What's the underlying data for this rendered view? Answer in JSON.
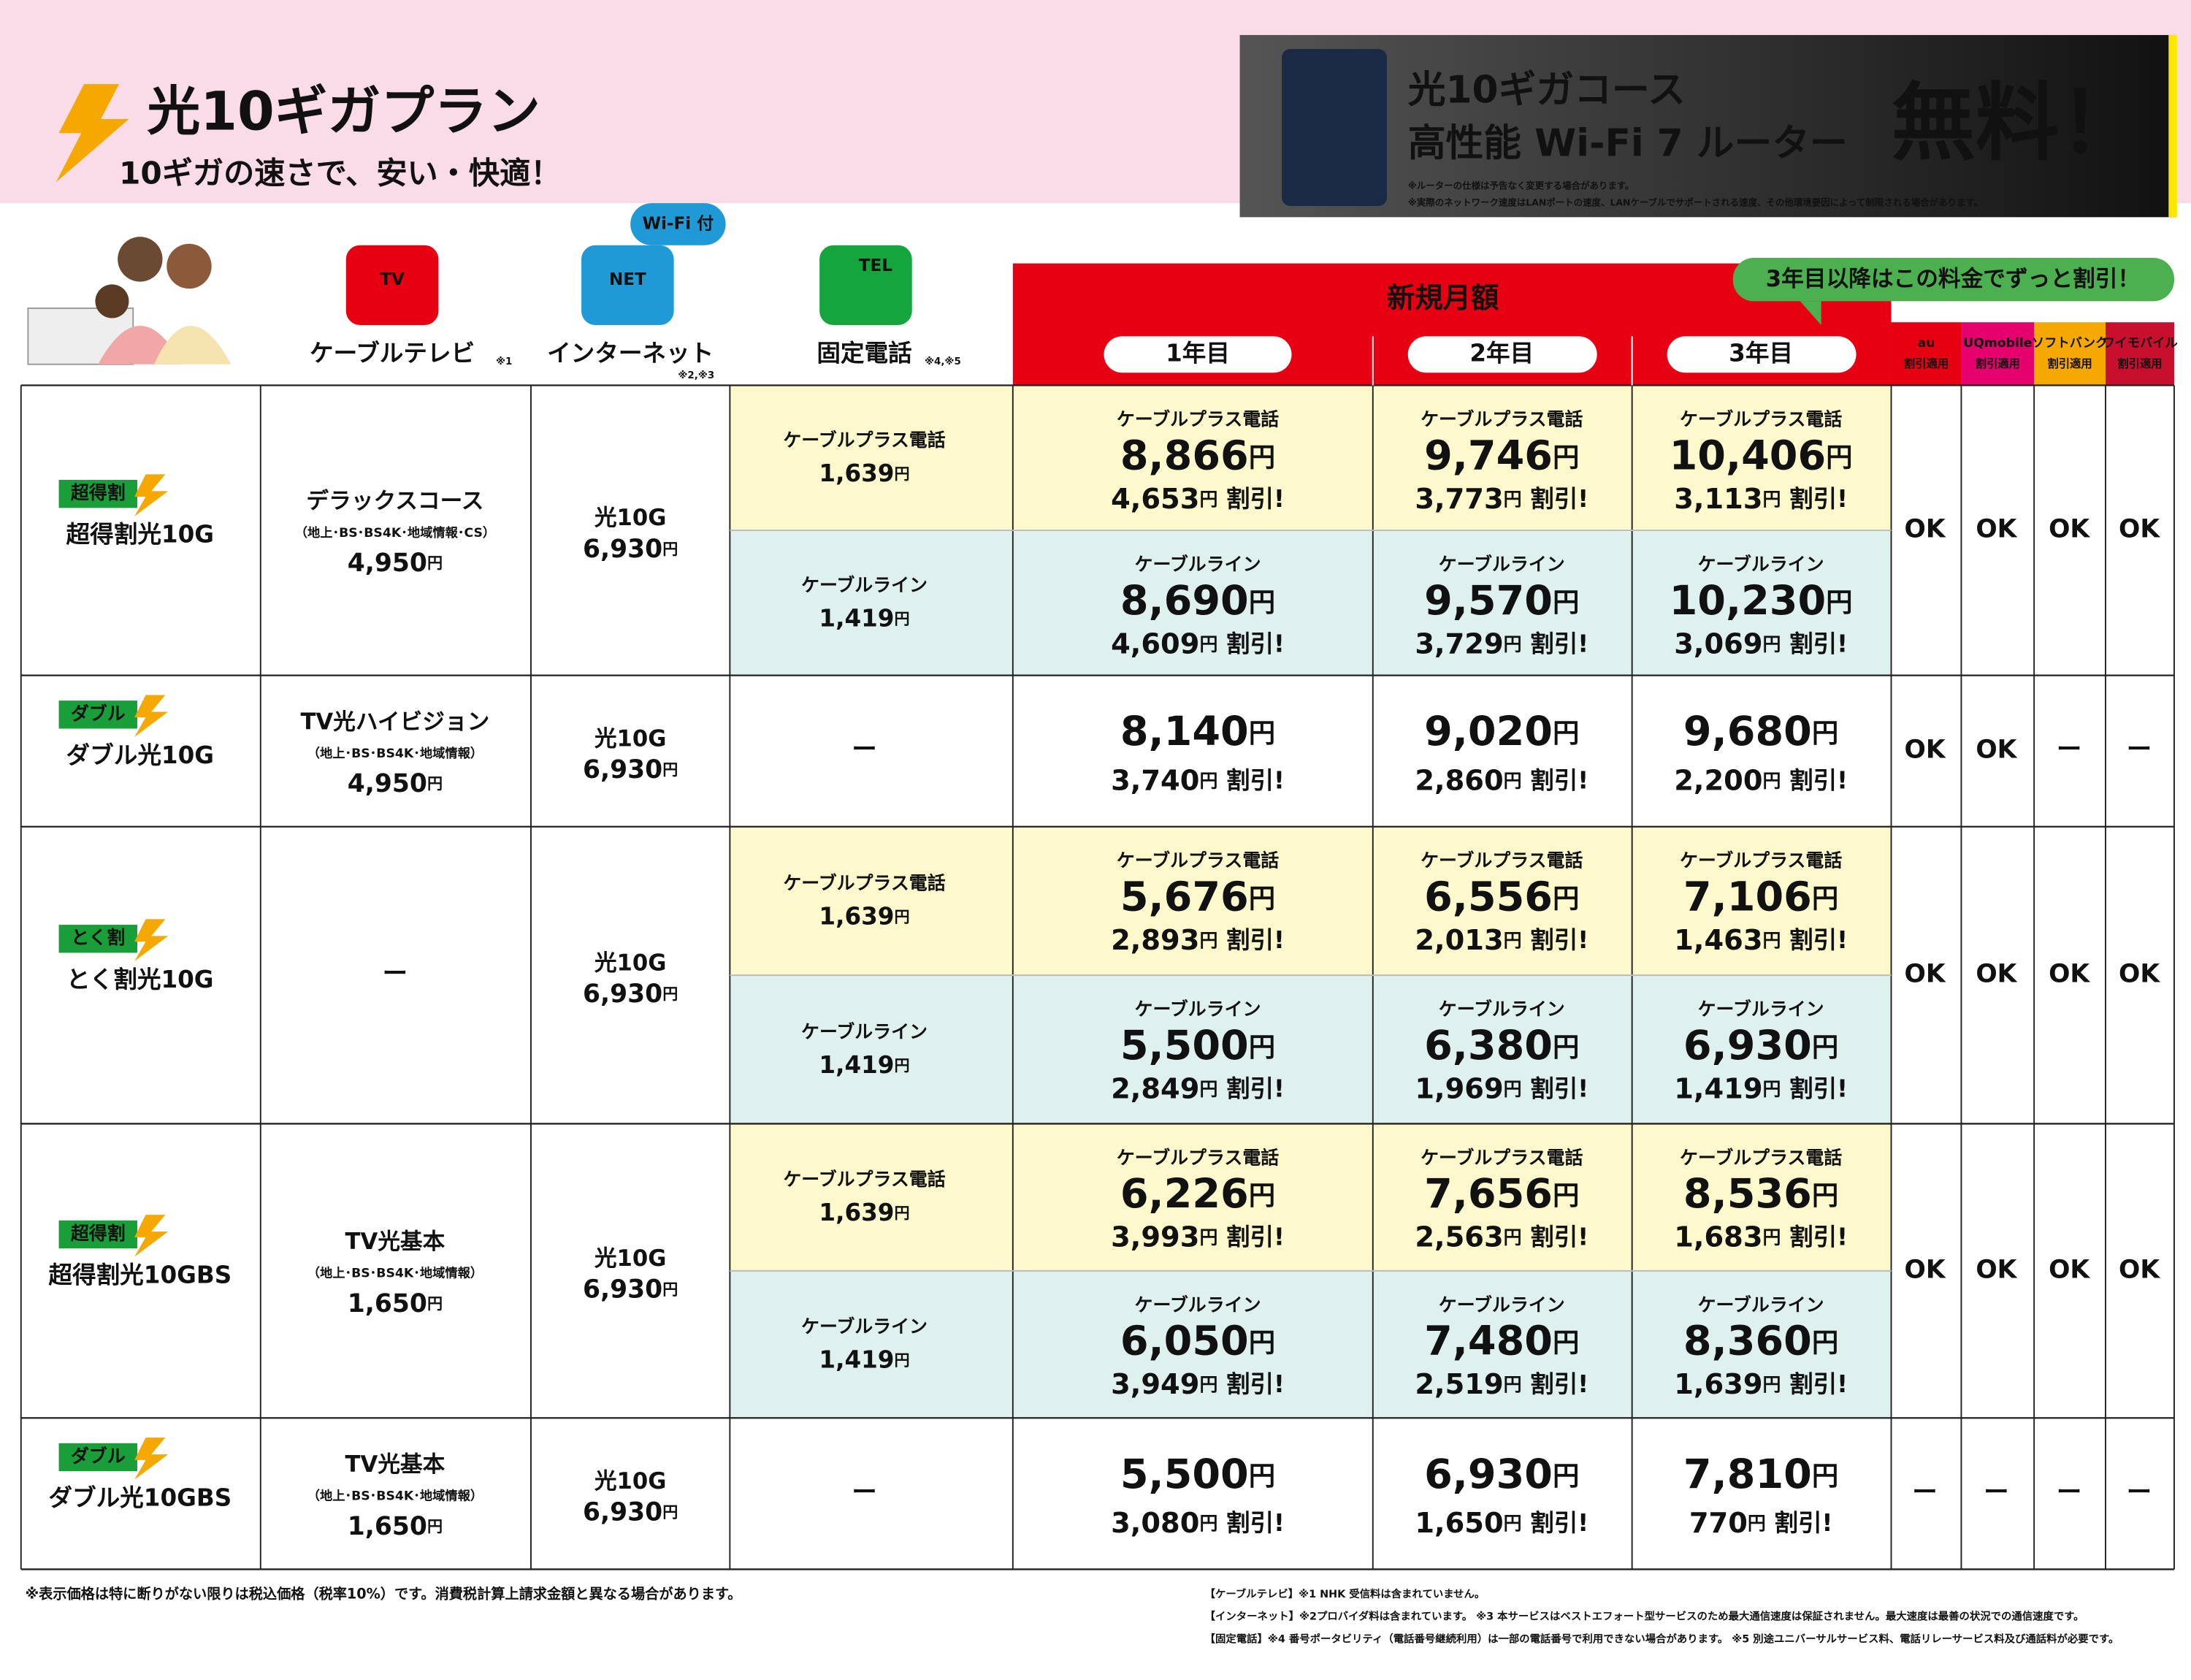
{
  "header": {
    "title": "光10ギガプラン",
    "subtitle": "10ギガの速さで、安い・快適！"
  },
  "banner": {
    "line1": "光10ギガコース",
    "line2": "高性能 Wi-Fi 7 ルーター",
    "badge": "無料！",
    "notes": [
      "※ルーターの仕様は予告なく変更する場合があります。",
      "※実際のネットワーク速度はLANポートの速度、LANケーブルでサポートされる速度、その他環境要因によって制限される場合があります。"
    ]
  },
  "columns": {
    "tv_icon": "TV",
    "tv": "ケーブルテレビ",
    "tv_note": "※1",
    "net_icon": "NET",
    "net": "インターネット",
    "net_note": "※2,※3",
    "wifi": "Wi-Fi 付",
    "tel_icon": "TEL",
    "phone": "固定電話",
    "phone_note": "※4,※5",
    "monthly": "新規月額",
    "years": [
      "1年目",
      "2年目",
      "3年目"
    ],
    "callout": "3年目以降はこの料金でずっと割引！",
    "carriers": [
      {
        "name": "au",
        "sub": "割引適用"
      },
      {
        "name": "UQmobile",
        "sub": "割引適用"
      },
      {
        "name": "ソフトバンク",
        "sub": "割引適用"
      },
      {
        "name": "ワイモバイル",
        "sub": "割引適用"
      }
    ]
  },
  "units": {
    "yen": "円",
    "discount": "割引!"
  },
  "rows": [
    {
      "badge": "超得割",
      "name": "超得割光10G",
      "tv": {
        "name": "デラックスコース",
        "detail": "（地上･BS･BS4K･地域情報･CS）",
        "price": "4,950"
      },
      "net": {
        "name": "光10G",
        "price": "6,930"
      },
      "phones": [
        {
          "name": "ケーブルプラス電話",
          "price": "1,639",
          "prices": [
            {
              "price": "8,866",
              "discount": "4,653"
            },
            {
              "price": "9,746",
              "discount": "3,773"
            },
            {
              "price": "10,406",
              "discount": "3,113"
            }
          ]
        },
        {
          "name": "ケーブルライン",
          "price": "1,419",
          "prices": [
            {
              "price": "8,690",
              "discount": "4,609"
            },
            {
              "price": "9,570",
              "discount": "3,729"
            },
            {
              "price": "10,230",
              "discount": "3,069"
            }
          ]
        }
      ],
      "ok": [
        "OK",
        "OK",
        "OK",
        "OK"
      ]
    },
    {
      "badge": "ダブル",
      "name": "ダブル光10G",
      "tv": {
        "name": "TV光ハイビジョン",
        "detail": "（地上･BS･BS4K･地域情報）",
        "price": "4,950"
      },
      "net": {
        "name": "光10G",
        "price": "6,930"
      },
      "phone": "ー",
      "prices": [
        {
          "price": "8,140",
          "discount": "3,740"
        },
        {
          "price": "9,020",
          "discount": "2,860"
        },
        {
          "price": "9,680",
          "discount": "2,200"
        }
      ],
      "ok": [
        "OK",
        "OK",
        "ー",
        "ー"
      ]
    },
    {
      "badge": "とく割",
      "name": "とく割光10G",
      "tv": {
        "name": "ー"
      },
      "net": {
        "name": "光10G",
        "price": "6,930"
      },
      "phones": [
        {
          "name": "ケーブルプラス電話",
          "price": "1,639",
          "prices": [
            {
              "price": "5,676",
              "discount": "2,893"
            },
            {
              "price": "6,556",
              "discount": "2,013"
            },
            {
              "price": "7,106",
              "discount": "1,463"
            }
          ]
        },
        {
          "name": "ケーブルライン",
          "price": "1,419",
          "prices": [
            {
              "price": "5,500",
              "discount": "2,849"
            },
            {
              "price": "6,380",
              "discount": "1,969"
            },
            {
              "price": "6,930",
              "discount": "1,419"
            }
          ]
        }
      ],
      "ok": [
        "OK",
        "OK",
        "OK",
        "OK"
      ]
    },
    {
      "badge": "超得割",
      "name": "超得割光10GBS",
      "tv": {
        "name": "TV光基本",
        "detail": "（地上･BS･BS4K･地域情報）",
        "price": "1,650"
      },
      "net": {
        "name": "光10G",
        "price": "6,930"
      },
      "phones": [
        {
          "name": "ケーブルプラス電話",
          "price": "1,639",
          "prices": [
            {
              "price": "6,226",
              "discount": "3,993"
            },
            {
              "price": "7,656",
              "discount": "2,563"
            },
            {
              "price": "8,536",
              "discount": "1,683"
            }
          ]
        },
        {
          "name": "ケーブルライン",
          "price": "1,419",
          "prices": [
            {
              "price": "6,050",
              "discount": "3,949"
            },
            {
              "price": "7,480",
              "discount": "2,519"
            },
            {
              "price": "8,360",
              "discount": "1,639"
            }
          ]
        }
      ],
      "ok": [
        "OK",
        "OK",
        "OK",
        "OK"
      ]
    },
    {
      "badge": "ダブル",
      "name": "ダブル光10GBS",
      "tv": {
        "name": "TV光基本",
        "detail": "（地上･BS･BS4K･地域情報）",
        "price": "1,650"
      },
      "net": {
        "name": "光10G",
        "price": "6,930"
      },
      "phone": "ー",
      "prices": [
        {
          "price": "5,500",
          "discount": "3,080"
        },
        {
          "price": "6,930",
          "discount": "1,650"
        },
        {
          "price": "7,810",
          "discount": "770"
        }
      ],
      "ok": [
        "ー",
        "ー",
        "ー",
        "ー"
      ]
    }
  ],
  "footnotes": {
    "left": "※表示価格は特に断りがない限りは税込価格（税率10%）です。消費税計算上請求金額と異なる場合があります。",
    "right": [
      "【ケーブルテレビ】※1 NHK 受信料は含まれていません。",
      "【インターネット】※2プロバイダ料は含まれています。 ※3 本サービスはベストエフォート型サービスのため最大通信速度は保証されません。最大速度は最善の状況での通信速度です。",
      "【固定電話】※4 番号ポータビリティ（電話番号継続利用）は一部の電話番号で利用できない場合があります。 ※5 別途ユニバーサルサービス料、電話リレーサービス料及び通話料が必要です。"
    ]
  }
}
